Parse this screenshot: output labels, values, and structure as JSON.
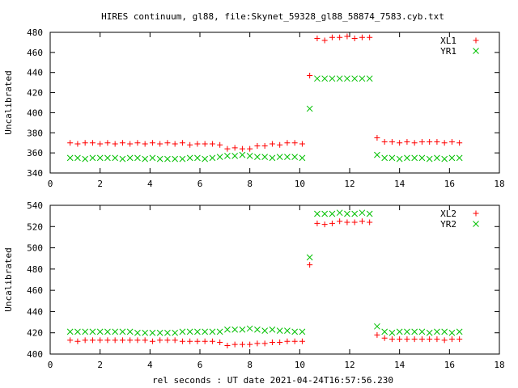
{
  "title": "HIRES continuum, gl88, file:Skynet_59328_gl88_58874_7583.cyb.txt",
  "footer_label": "rel seconds : UT date 2021-04-24T16:57:56.230",
  "chart_data": [
    {
      "type": "scatter",
      "ylabel": "Uncalibrated",
      "xlim": [
        0,
        18
      ],
      "ylim": [
        340,
        480
      ],
      "xticks": [
        0,
        2,
        4,
        6,
        8,
        10,
        12,
        14,
        16,
        18
      ],
      "yticks": [
        340,
        360,
        380,
        400,
        420,
        440,
        460,
        480
      ],
      "grid": false,
      "legend_position": "top-right",
      "series": [
        {
          "name": "XL1",
          "marker": "plus",
          "color": "#ff0000",
          "x": [
            0.8,
            1.1,
            1.4,
            1.7,
            2.0,
            2.3,
            2.6,
            2.9,
            3.2,
            3.5,
            3.8,
            4.1,
            4.4,
            4.7,
            5.0,
            5.3,
            5.6,
            5.9,
            6.2,
            6.5,
            6.8,
            7.1,
            7.4,
            7.7,
            8.0,
            8.3,
            8.6,
            8.9,
            9.2,
            9.5,
            9.8,
            10.1,
            10.4,
            10.7,
            11.0,
            11.3,
            11.6,
            11.9,
            12.2,
            12.5,
            12.8,
            13.1,
            13.4,
            13.7,
            14.0,
            14.3,
            14.6,
            14.9,
            15.2,
            15.5,
            15.8,
            16.1,
            16.4
          ],
          "y": [
            370,
            369,
            370,
            370,
            369,
            370,
            369,
            370,
            369,
            370,
            369,
            370,
            369,
            370,
            369,
            370,
            368,
            369,
            369,
            369,
            368,
            364,
            365,
            364,
            364,
            367,
            367,
            369,
            368,
            370,
            370,
            369,
            437,
            474,
            472,
            475,
            475,
            476,
            474,
            475,
            475,
            375,
            371,
            371,
            370,
            371,
            370,
            371,
            371,
            371,
            370,
            371,
            370
          ]
        },
        {
          "name": "YR1",
          "marker": "cross",
          "color": "#00c000",
          "x": [
            0.8,
            1.1,
            1.4,
            1.7,
            2.0,
            2.3,
            2.6,
            2.9,
            3.2,
            3.5,
            3.8,
            4.1,
            4.4,
            4.7,
            5.0,
            5.3,
            5.6,
            5.9,
            6.2,
            6.5,
            6.8,
            7.1,
            7.4,
            7.7,
            8.0,
            8.3,
            8.6,
            8.9,
            9.2,
            9.5,
            9.8,
            10.1,
            10.4,
            10.7,
            11.0,
            11.3,
            11.6,
            11.9,
            12.2,
            12.5,
            12.8,
            13.1,
            13.4,
            13.7,
            14.0,
            14.3,
            14.6,
            14.9,
            15.2,
            15.5,
            15.8,
            16.1,
            16.4
          ],
          "y": [
            355,
            355,
            354,
            355,
            355,
            355,
            355,
            354,
            355,
            355,
            354,
            355,
            354,
            354,
            354,
            354,
            355,
            355,
            354,
            355,
            356,
            357,
            357,
            358,
            357,
            356,
            356,
            355,
            356,
            356,
            356,
            355,
            404,
            434,
            434,
            434,
            434,
            434,
            434,
            434,
            434,
            358,
            355,
            355,
            354,
            355,
            355,
            355,
            354,
            355,
            354,
            355,
            355
          ]
        }
      ]
    },
    {
      "type": "scatter",
      "ylabel": "Uncalibrated",
      "xlim": [
        0,
        18
      ],
      "ylim": [
        400,
        540
      ],
      "xticks": [
        0,
        2,
        4,
        6,
        8,
        10,
        12,
        14,
        16,
        18
      ],
      "yticks": [
        400,
        420,
        440,
        460,
        480,
        500,
        520,
        540
      ],
      "grid": false,
      "legend_position": "top-right",
      "series": [
        {
          "name": "XL2",
          "marker": "plus",
          "color": "#ff0000",
          "x": [
            0.8,
            1.1,
            1.4,
            1.7,
            2.0,
            2.3,
            2.6,
            2.9,
            3.2,
            3.5,
            3.8,
            4.1,
            4.4,
            4.7,
            5.0,
            5.3,
            5.6,
            5.9,
            6.2,
            6.5,
            6.8,
            7.1,
            7.4,
            7.7,
            8.0,
            8.3,
            8.6,
            8.9,
            9.2,
            9.5,
            9.8,
            10.1,
            10.4,
            10.7,
            11.0,
            11.3,
            11.6,
            11.9,
            12.2,
            12.5,
            12.8,
            13.1,
            13.4,
            13.7,
            14.0,
            14.3,
            14.6,
            14.9,
            15.2,
            15.5,
            15.8,
            16.1,
            16.4
          ],
          "y": [
            413,
            412,
            413,
            413,
            413,
            413,
            413,
            413,
            413,
            413,
            413,
            412,
            413,
            413,
            413,
            412,
            412,
            412,
            412,
            412,
            411,
            408,
            409,
            409,
            409,
            410,
            410,
            411,
            411,
            412,
            412,
            412,
            484,
            523,
            522,
            523,
            525,
            524,
            524,
            525,
            524,
            418,
            415,
            414,
            414,
            414,
            414,
            414,
            414,
            414,
            413,
            414,
            414
          ]
        },
        {
          "name": "YR2",
          "marker": "cross",
          "color": "#00c000",
          "x": [
            0.8,
            1.1,
            1.4,
            1.7,
            2.0,
            2.3,
            2.6,
            2.9,
            3.2,
            3.5,
            3.8,
            4.1,
            4.4,
            4.7,
            5.0,
            5.3,
            5.6,
            5.9,
            6.2,
            6.5,
            6.8,
            7.1,
            7.4,
            7.7,
            8.0,
            8.3,
            8.6,
            8.9,
            9.2,
            9.5,
            9.8,
            10.1,
            10.4,
            10.7,
            11.0,
            11.3,
            11.6,
            11.9,
            12.2,
            12.5,
            12.8,
            13.1,
            13.4,
            13.7,
            14.0,
            14.3,
            14.6,
            14.9,
            15.2,
            15.5,
            15.8,
            16.1,
            16.4
          ],
          "y": [
            421,
            421,
            421,
            421,
            421,
            421,
            421,
            421,
            421,
            420,
            420,
            420,
            420,
            420,
            420,
            421,
            421,
            421,
            421,
            421,
            421,
            423,
            423,
            423,
            424,
            423,
            422,
            423,
            422,
            422,
            421,
            421,
            491,
            532,
            532,
            532,
            533,
            532,
            532,
            533,
            532,
            426,
            421,
            420,
            421,
            421,
            421,
            421,
            420,
            421,
            421,
            420,
            421
          ]
        }
      ]
    }
  ]
}
